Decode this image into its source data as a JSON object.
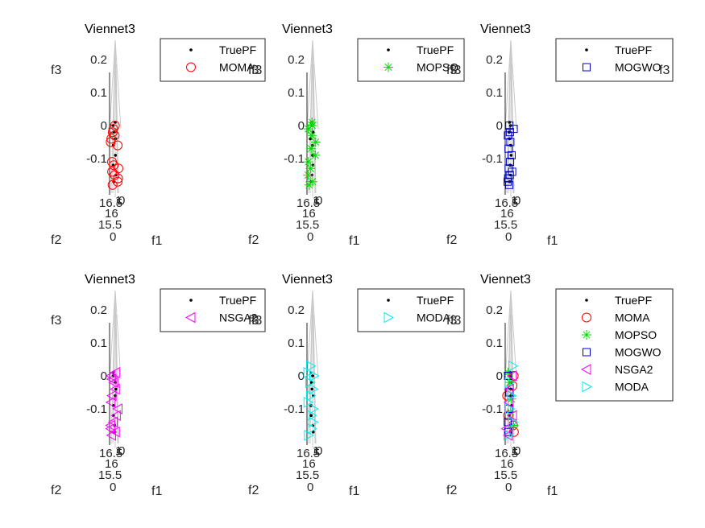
{
  "figure": {
    "ztick_labels": [
      "0.2",
      "0.1",
      "0",
      "-0.1"
    ],
    "bottom_tick_labels": [
      "16.5",
      "16",
      "15.5",
      "0"
    ],
    "tick_right_labels": [
      "1",
      "0"
    ]
  },
  "colors": {
    "TruePF": "#000000",
    "MOMA": "#ff0000",
    "MOPSO": "#00dd00",
    "MOGWO": "#0000cc",
    "NSGA2": "#ff00ff",
    "MODA": "#00eeee",
    "surface": "#c8c8c8"
  },
  "chart_data": [
    {
      "type": "scatter",
      "title": "Viennet3",
      "xlabel": "f1",
      "ylabel": "f2",
      "zlabel": "f3",
      "zlim": [
        -0.2,
        0.25
      ],
      "legend": [
        "TruePF",
        "MOMA"
      ],
      "series": [
        {
          "name": "TruePF",
          "marker": "dot",
          "points": [
            [
              0.01
            ],
            [
              0.0
            ],
            [
              -0.02
            ],
            [
              -0.04
            ],
            [
              -0.06
            ],
            [
              -0.09
            ],
            [
              -0.12
            ],
            [
              -0.15
            ],
            [
              -0.17
            ]
          ]
        },
        {
          "name": "MOMA",
          "marker": "circle",
          "points": [
            [
              0.0
            ],
            [
              -0.01
            ],
            [
              -0.02
            ],
            [
              -0.03
            ],
            [
              -0.04
            ],
            [
              -0.05
            ],
            [
              -0.06
            ],
            [
              -0.11
            ],
            [
              -0.12
            ],
            [
              -0.13
            ],
            [
              -0.14
            ],
            [
              -0.15
            ],
            [
              -0.16
            ],
            [
              -0.17
            ],
            [
              -0.18
            ]
          ]
        }
      ]
    },
    {
      "type": "scatter",
      "title": "Viennet3",
      "xlabel": "f1",
      "ylabel": "f2",
      "zlabel": "f3",
      "zlim": [
        -0.2,
        0.25
      ],
      "legend": [
        "TruePF",
        "MOPSO"
      ],
      "series": [
        {
          "name": "TruePF",
          "marker": "dot",
          "points": [
            [
              0.01
            ],
            [
              0.0
            ],
            [
              -0.02
            ],
            [
              -0.04
            ],
            [
              -0.06
            ],
            [
              -0.09
            ],
            [
              -0.12
            ],
            [
              -0.15
            ],
            [
              -0.17
            ]
          ]
        },
        {
          "name": "MOPSO",
          "marker": "star",
          "points": [
            [
              0.01
            ],
            [
              0.0
            ],
            [
              -0.01
            ],
            [
              -0.03
            ],
            [
              -0.05
            ],
            [
              -0.07
            ],
            [
              -0.09
            ],
            [
              -0.11
            ],
            [
              -0.13
            ],
            [
              -0.15
            ],
            [
              -0.17
            ],
            [
              -0.18
            ]
          ]
        }
      ]
    },
    {
      "type": "scatter",
      "title": "Viennet3",
      "xlabel": "f1",
      "ylabel": "f2",
      "zlabel": "f3",
      "zlim": [
        -0.2,
        0.25
      ],
      "legend": [
        "TruePF",
        "MOGWO"
      ],
      "series": [
        {
          "name": "TruePF",
          "marker": "dot",
          "points": [
            [
              0.01
            ],
            [
              0.0
            ],
            [
              -0.02
            ],
            [
              -0.04
            ],
            [
              -0.06
            ],
            [
              -0.09
            ],
            [
              -0.12
            ],
            [
              -0.15
            ],
            [
              -0.17
            ]
          ]
        },
        {
          "name": "MOGWO",
          "marker": "square",
          "points": [
            [
              0.0
            ],
            [
              -0.01
            ],
            [
              -0.02
            ],
            [
              -0.03
            ],
            [
              -0.05
            ],
            [
              -0.07
            ],
            [
              -0.09
            ],
            [
              -0.11
            ],
            [
              -0.13
            ],
            [
              -0.14
            ],
            [
              -0.15
            ],
            [
              -0.16
            ],
            [
              -0.17
            ],
            [
              -0.18
            ]
          ]
        }
      ]
    },
    {
      "type": "scatter",
      "title": "Viennet3",
      "xlabel": "f1",
      "ylabel": "f2",
      "zlabel": "f3",
      "zlim": [
        -0.2,
        0.25
      ],
      "legend": [
        "TruePF",
        "NSGA2"
      ],
      "series": [
        {
          "name": "TruePF",
          "marker": "dot",
          "points": [
            [
              0.01
            ],
            [
              0.0
            ],
            [
              -0.02
            ],
            [
              -0.04
            ],
            [
              -0.06
            ],
            [
              -0.09
            ],
            [
              -0.12
            ],
            [
              -0.15
            ],
            [
              -0.17
            ]
          ]
        },
        {
          "name": "NSGA2",
          "marker": "triangle-left",
          "points": [
            [
              0.01
            ],
            [
              0.0
            ],
            [
              -0.01
            ],
            [
              -0.02
            ],
            [
              -0.04
            ],
            [
              -0.06
            ],
            [
              -0.08
            ],
            [
              -0.1
            ],
            [
              -0.12
            ],
            [
              -0.14
            ],
            [
              -0.15
            ],
            [
              -0.16
            ],
            [
              -0.17
            ],
            [
              -0.18
            ]
          ]
        }
      ]
    },
    {
      "type": "scatter",
      "title": "Viennet3",
      "xlabel": "f1",
      "ylabel": "f2",
      "zlabel": "f3",
      "zlim": [
        -0.2,
        0.25
      ],
      "legend": [
        "TruePF",
        "MODA"
      ],
      "series": [
        {
          "name": "TruePF",
          "marker": "dot",
          "points": [
            [
              0.01
            ],
            [
              0.0
            ],
            [
              -0.02
            ],
            [
              -0.04
            ],
            [
              -0.06
            ],
            [
              -0.09
            ],
            [
              -0.12
            ],
            [
              -0.15
            ],
            [
              -0.17
            ]
          ]
        },
        {
          "name": "MODA",
          "marker": "triangle-right",
          "points": [
            [
              0.03
            ],
            [
              0.01
            ],
            [
              0.0
            ],
            [
              -0.02
            ],
            [
              -0.04
            ],
            [
              -0.06
            ],
            [
              -0.08
            ],
            [
              -0.1
            ],
            [
              -0.12
            ],
            [
              -0.14
            ],
            [
              -0.16
            ],
            [
              -0.18
            ]
          ]
        }
      ]
    },
    {
      "type": "scatter",
      "title": "Viennet3",
      "xlabel": "f1",
      "ylabel": "f2",
      "zlabel": "f3",
      "zlim": [
        -0.2,
        0.25
      ],
      "legend": [
        "TruePF",
        "MOMA",
        "MOPSO",
        "MOGWO",
        "NSGA2",
        "MODA"
      ],
      "series": [
        {
          "name": "TruePF",
          "marker": "dot",
          "points": [
            [
              0.01
            ],
            [
              0.0
            ],
            [
              -0.02
            ],
            [
              -0.04
            ],
            [
              -0.06
            ],
            [
              -0.09
            ],
            [
              -0.12
            ],
            [
              -0.15
            ],
            [
              -0.17
            ]
          ]
        },
        {
          "name": "MOMA",
          "marker": "circle",
          "points": [
            [
              0.0
            ],
            [
              -0.03
            ],
            [
              -0.06
            ],
            [
              -0.12
            ],
            [
              -0.15
            ],
            [
              -0.17
            ]
          ]
        },
        {
          "name": "MOPSO",
          "marker": "star",
          "points": [
            [
              0.01
            ],
            [
              -0.02
            ],
            [
              -0.07
            ],
            [
              -0.11
            ],
            [
              -0.15
            ]
          ]
        },
        {
          "name": "MOGWO",
          "marker": "square",
          "points": [
            [
              0.0
            ],
            [
              -0.05
            ],
            [
              -0.1
            ],
            [
              -0.14
            ],
            [
              -0.17
            ]
          ]
        },
        {
          "name": "NSGA2",
          "marker": "triangle-left",
          "points": [
            [
              0.0
            ],
            [
              -0.04
            ],
            [
              -0.08
            ],
            [
              -0.12
            ],
            [
              -0.16
            ],
            [
              -0.18
            ]
          ]
        },
        {
          "name": "MODA",
          "marker": "triangle-right",
          "points": [
            [
              0.03
            ],
            [
              -0.02
            ],
            [
              -0.06
            ],
            [
              -0.1
            ],
            [
              -0.14
            ],
            [
              -0.18
            ]
          ]
        }
      ]
    }
  ]
}
